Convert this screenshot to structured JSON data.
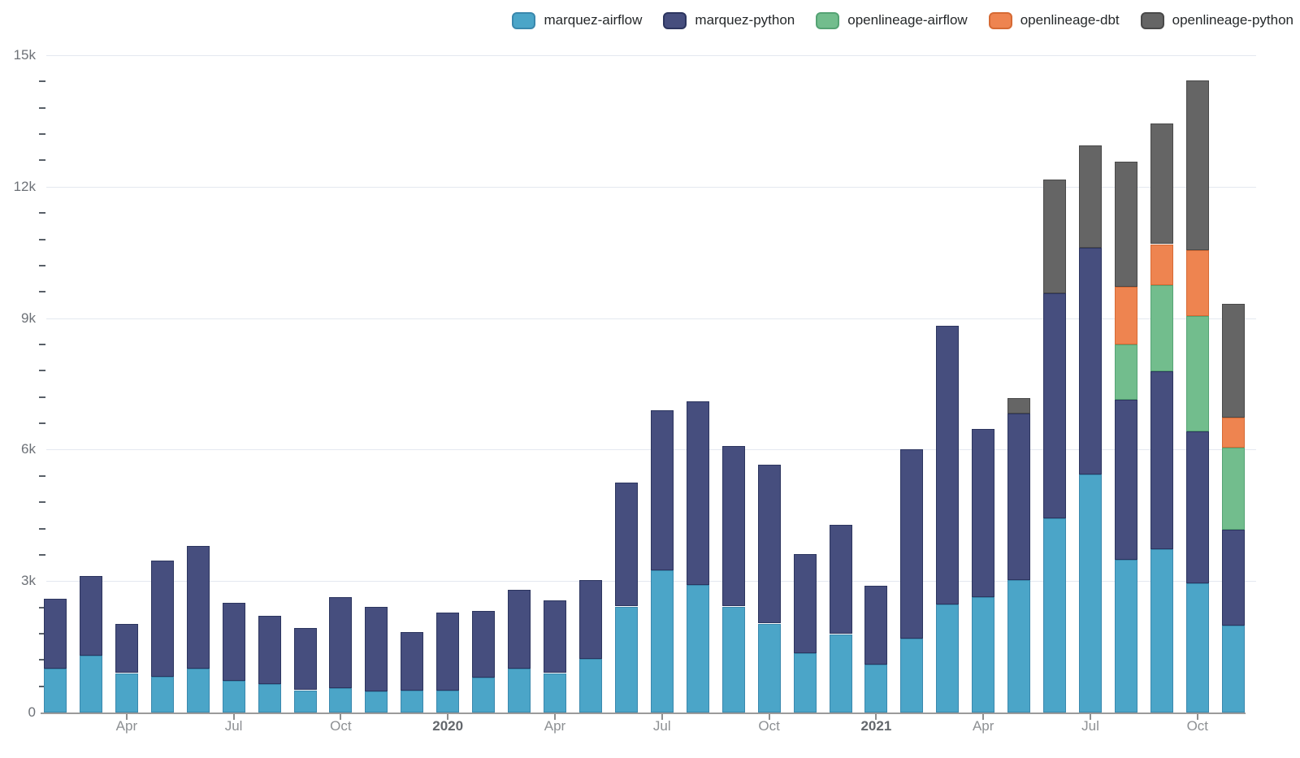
{
  "legend": {
    "items": [
      {
        "label": "marquez-airflow",
        "color": "#4ba5c8",
        "border": "#3a88ad"
      },
      {
        "label": "marquez-python",
        "color": "#464e7e",
        "border": "#2c355f"
      },
      {
        "label": "openlineage-airflow",
        "color": "#72bd8d",
        "border": "#55a374"
      },
      {
        "label": "openlineage-dbt",
        "color": "#ee8450",
        "border": "#d66a34"
      },
      {
        "label": "openlineage-python",
        "color": "#656565",
        "border": "#494949"
      }
    ]
  },
  "y_axis": {
    "major_ticks": [
      {
        "value": 0,
        "label": "0"
      },
      {
        "value": 3000,
        "label": "3k"
      },
      {
        "value": 6000,
        "label": "6k"
      },
      {
        "value": 9000,
        "label": "9k"
      },
      {
        "value": 12000,
        "label": "12k"
      },
      {
        "value": 15000,
        "label": "15k"
      }
    ],
    "minor_tick_step": 600,
    "max": 15000
  },
  "x_axis": {
    "ticks": [
      {
        "month_index": 2,
        "label": "Apr",
        "bold": false
      },
      {
        "month_index": 5,
        "label": "Jul",
        "bold": false
      },
      {
        "month_index": 8,
        "label": "Oct",
        "bold": false
      },
      {
        "month_index": 11,
        "label": "2020",
        "bold": true
      },
      {
        "month_index": 14,
        "label": "Apr",
        "bold": false
      },
      {
        "month_index": 17,
        "label": "Jul",
        "bold": false
      },
      {
        "month_index": 20,
        "label": "Oct",
        "bold": false
      },
      {
        "month_index": 23,
        "label": "2021",
        "bold": true
      },
      {
        "month_index": 26,
        "label": "Apr",
        "bold": false
      },
      {
        "month_index": 29,
        "label": "Jul",
        "bold": false
      },
      {
        "month_index": 32,
        "label": "Oct",
        "bold": false
      }
    ]
  },
  "chart_data": {
    "type": "bar",
    "stacked": true,
    "title": "",
    "xlabel": "",
    "ylabel": "",
    "ylim": [
      0,
      15000
    ],
    "grid": "horizontal-major",
    "legend_position": "top-right",
    "x": [
      "2019-02",
      "2019-03",
      "2019-04",
      "2019-05",
      "2019-06",
      "2019-07",
      "2019-08",
      "2019-09",
      "2019-10",
      "2019-11",
      "2019-12",
      "2020-01",
      "2020-02",
      "2020-03",
      "2020-04",
      "2020-05",
      "2020-06",
      "2020-07",
      "2020-08",
      "2020-09",
      "2020-10",
      "2020-11",
      "2020-12",
      "2021-01",
      "2021-02",
      "2021-03",
      "2021-04",
      "2021-05",
      "2021-06",
      "2021-07",
      "2021-08",
      "2021-09",
      "2021-10",
      "2021-11"
    ],
    "series": [
      {
        "name": "marquez-airflow",
        "color": "#4ba5c8",
        "border": "#3a88ad",
        "values": [
          1000,
          1300,
          900,
          820,
          1000,
          730,
          650,
          510,
          560,
          480,
          500,
          500,
          790,
          1000,
          900,
          1230,
          2420,
          3240,
          2910,
          2420,
          2030,
          1360,
          1790,
          1100,
          1690,
          2470,
          2640,
          3020,
          4430,
          5430,
          3480,
          3720,
          2940,
          1990
        ]
      },
      {
        "name": "marquez-python",
        "color": "#464e7e",
        "border": "#2c355f",
        "values": [
          1600,
          1810,
          1120,
          2650,
          2800,
          1770,
          1560,
          1420,
          2070,
          1930,
          1340,
          1790,
          1520,
          1800,
          1660,
          1790,
          2830,
          3660,
          4200,
          3660,
          3620,
          2250,
          2490,
          1790,
          4310,
          6350,
          3830,
          3810,
          5130,
          5170,
          3660,
          4060,
          3480,
          2180
        ]
      },
      {
        "name": "openlineage-airflow",
        "color": "#72bd8d",
        "border": "#55a374",
        "values": [
          0,
          0,
          0,
          0,
          0,
          0,
          0,
          0,
          0,
          0,
          0,
          0,
          0,
          0,
          0,
          0,
          0,
          0,
          0,
          0,
          0,
          0,
          0,
          0,
          0,
          0,
          0,
          0,
          0,
          0,
          1260,
          1980,
          2620,
          1880
        ]
      },
      {
        "name": "openlineage-dbt",
        "color": "#ee8450",
        "border": "#d66a34",
        "values": [
          0,
          0,
          0,
          0,
          0,
          0,
          0,
          0,
          0,
          0,
          0,
          0,
          0,
          0,
          0,
          0,
          0,
          0,
          0,
          0,
          0,
          0,
          0,
          0,
          0,
          0,
          0,
          0,
          0,
          0,
          1310,
          930,
          1510,
          680
        ]
      },
      {
        "name": "openlineage-python",
        "color": "#656565",
        "border": "#494949",
        "values": [
          0,
          0,
          0,
          0,
          0,
          0,
          0,
          0,
          0,
          0,
          0,
          0,
          0,
          0,
          0,
          0,
          0,
          0,
          0,
          0,
          0,
          0,
          0,
          0,
          0,
          0,
          0,
          350,
          2610,
          2340,
          2860,
          2760,
          3870,
          2590
        ]
      }
    ]
  }
}
